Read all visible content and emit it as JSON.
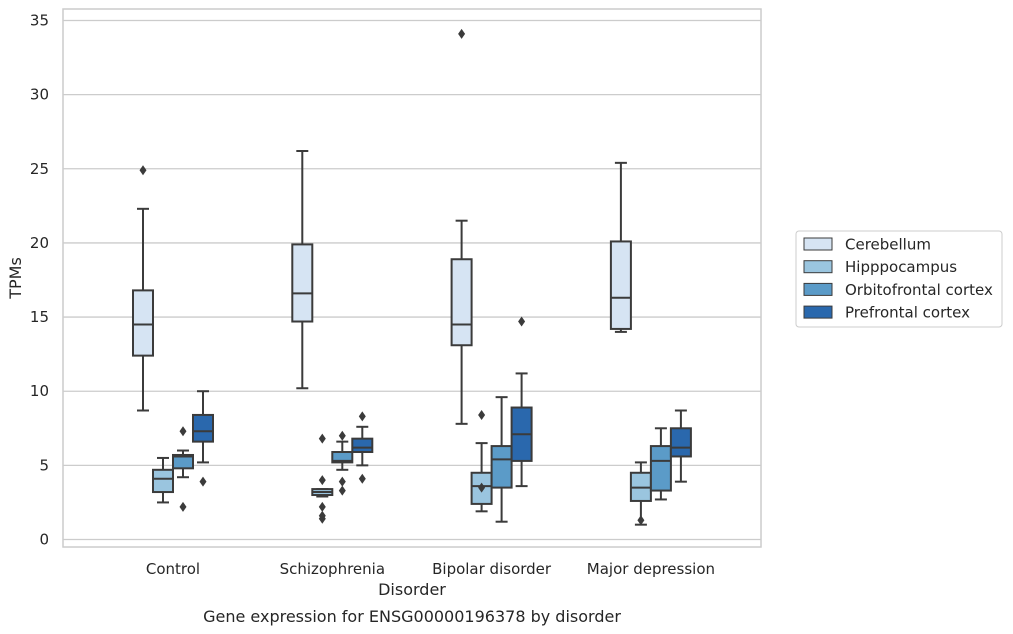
{
  "chart_data": {
    "type": "box",
    "title": "",
    "caption": "Gene expression for ENSG00000196378 by disorder",
    "xlabel": "Disorder",
    "ylabel": "TPMs",
    "ylim": [
      -0.5,
      35.8
    ],
    "yticks": [
      0,
      5,
      10,
      15,
      20,
      25,
      30,
      35
    ],
    "grid": "horizontal",
    "legend_position": "right",
    "categories": [
      "Control",
      "Schizophrenia",
      "Bipolar disorder",
      "Major depression"
    ],
    "series": [
      {
        "name": "Cerebellum",
        "color": "#d6e4f3",
        "boxes": [
          {
            "whisker_low": 8.7,
            "q1": 12.4,
            "median": 14.5,
            "q3": 16.8,
            "whisker_high": 22.3,
            "outliers": [
              24.9
            ]
          },
          {
            "whisker_low": 10.2,
            "q1": 14.7,
            "median": 16.6,
            "q3": 19.9,
            "whisker_high": 26.2,
            "outliers": []
          },
          {
            "whisker_low": 7.8,
            "q1": 13.1,
            "median": 14.5,
            "q3": 18.9,
            "whisker_high": 21.5,
            "outliers": [
              34.1
            ]
          },
          {
            "whisker_low": 14.0,
            "q1": 14.2,
            "median": 16.3,
            "q3": 20.1,
            "whisker_high": 25.4,
            "outliers": []
          }
        ]
      },
      {
        "name": "Hipppocampus",
        "color": "#9ac5df",
        "boxes": [
          {
            "whisker_low": 2.5,
            "q1": 3.2,
            "median": 4.1,
            "q3": 4.7,
            "whisker_high": 5.5,
            "outliers": []
          },
          {
            "whisker_low": 2.9,
            "q1": 3.0,
            "median": 3.2,
            "q3": 3.4,
            "whisker_high": 3.4,
            "outliers": [
              6.8,
              4.0,
              2.2,
              1.6,
              1.4
            ]
          },
          {
            "whisker_low": 1.9,
            "q1": 2.4,
            "median": 3.6,
            "q3": 4.5,
            "whisker_high": 6.5,
            "outliers": [
              8.4,
              3.5
            ]
          },
          {
            "whisker_low": 1.0,
            "q1": 2.6,
            "median": 3.5,
            "q3": 4.5,
            "whisker_high": 5.2,
            "outliers": [
              1.3
            ]
          }
        ]
      },
      {
        "name": "Orbitofrontal cortex",
        "color": "#5b9bc8",
        "boxes": [
          {
            "whisker_low": 4.2,
            "q1": 4.8,
            "median": 5.6,
            "q3": 5.7,
            "whisker_high": 6.0,
            "outliers": [
              7.3,
              2.2
            ]
          },
          {
            "whisker_low": 4.7,
            "q1": 5.2,
            "median": 5.3,
            "q3": 5.9,
            "whisker_high": 6.6,
            "outliers": [
              7.0,
              3.9,
              3.3
            ]
          },
          {
            "whisker_low": 1.2,
            "q1": 3.5,
            "median": 5.4,
            "q3": 6.3,
            "whisker_high": 9.6,
            "outliers": []
          },
          {
            "whisker_low": 2.7,
            "q1": 3.3,
            "median": 5.3,
            "q3": 6.3,
            "whisker_high": 7.5,
            "outliers": []
          }
        ]
      },
      {
        "name": "Prefrontal cortex",
        "color": "#2a68ad",
        "boxes": [
          {
            "whisker_low": 5.2,
            "q1": 6.6,
            "median": 7.3,
            "q3": 8.4,
            "whisker_high": 10.0,
            "outliers": [
              3.9
            ]
          },
          {
            "whisker_low": 5.0,
            "q1": 5.9,
            "median": 6.2,
            "q3": 6.8,
            "whisker_high": 7.6,
            "outliers": [
              8.3,
              4.1
            ]
          },
          {
            "whisker_low": 3.6,
            "q1": 5.3,
            "median": 7.1,
            "q3": 8.9,
            "whisker_high": 11.2,
            "outliers": [
              14.7
            ]
          },
          {
            "whisker_low": 3.9,
            "q1": 5.6,
            "median": 6.2,
            "q3": 7.5,
            "whisker_high": 8.7,
            "outliers": []
          }
        ]
      }
    ]
  }
}
